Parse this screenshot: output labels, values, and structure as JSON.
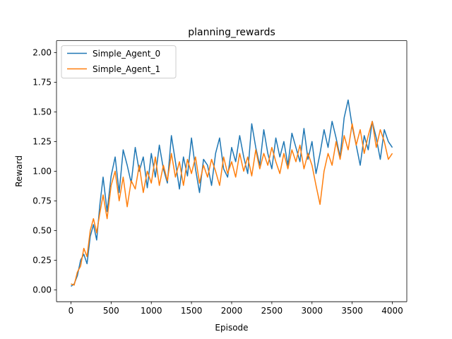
{
  "chart_data": {
    "type": "line",
    "title": "planning_rewards",
    "xlabel": "Episode",
    "ylabel": "Reward",
    "xlim": [
      -180,
      4180
    ],
    "ylim": [
      -0.1,
      2.1
    ],
    "x_ticks": [
      0,
      500,
      1000,
      1500,
      2000,
      2500,
      3000,
      3500,
      4000
    ],
    "x_tick_labels": [
      "0",
      "500",
      "1000",
      "1500",
      "2000",
      "2500",
      "3000",
      "3500",
      "4000"
    ],
    "y_ticks": [
      0.0,
      0.25,
      0.5,
      0.75,
      1.0,
      1.25,
      1.5,
      1.75,
      2.0
    ],
    "y_tick_labels": [
      "0.00",
      "0.25",
      "0.50",
      "0.75",
      "1.00",
      "1.25",
      "1.50",
      "1.75",
      "2.00"
    ],
    "grid": false,
    "legend_position": "top-left",
    "series": [
      {
        "name": "Simple_Agent_0",
        "color": "#1f77b4",
        "points": [
          [
            0,
            0.03
          ],
          [
            40,
            0.05
          ],
          [
            80,
            0.12
          ],
          [
            120,
            0.25
          ],
          [
            160,
            0.3
          ],
          [
            200,
            0.22
          ],
          [
            240,
            0.45
          ],
          [
            280,
            0.55
          ],
          [
            320,
            0.42
          ],
          [
            360,
            0.72
          ],
          [
            400,
            0.95
          ],
          [
            450,
            0.66
          ],
          [
            500,
            0.96
          ],
          [
            550,
            1.12
          ],
          [
            600,
            0.82
          ],
          [
            650,
            1.18
          ],
          [
            700,
            1.05
          ],
          [
            750,
            0.9
          ],
          [
            800,
            1.2
          ],
          [
            850,
            1.0
          ],
          [
            900,
            1.12
          ],
          [
            950,
            0.86
          ],
          [
            1000,
            1.15
          ],
          [
            1050,
            0.95
          ],
          [
            1100,
            1.22
          ],
          [
            1150,
            1.02
          ],
          [
            1200,
            0.9
          ],
          [
            1250,
            1.3
          ],
          [
            1300,
            1.08
          ],
          [
            1350,
            0.85
          ],
          [
            1400,
            1.12
          ],
          [
            1450,
            0.96
          ],
          [
            1500,
            1.28
          ],
          [
            1550,
            1.02
          ],
          [
            1600,
            0.82
          ],
          [
            1650,
            1.1
          ],
          [
            1700,
            1.05
          ],
          [
            1750,
            0.88
          ],
          [
            1800,
            1.15
          ],
          [
            1850,
            1.28
          ],
          [
            1900,
            1.02
          ],
          [
            1950,
            0.95
          ],
          [
            2000,
            1.2
          ],
          [
            2050,
            1.08
          ],
          [
            2100,
            1.3
          ],
          [
            2150,
            1.12
          ],
          [
            2200,
            0.98
          ],
          [
            2250,
            1.4
          ],
          [
            2300,
            1.2
          ],
          [
            2350,
            1.05
          ],
          [
            2400,
            1.35
          ],
          [
            2450,
            1.15
          ],
          [
            2500,
            1.02
          ],
          [
            2550,
            1.28
          ],
          [
            2600,
            1.12
          ],
          [
            2650,
            1.25
          ],
          [
            2700,
            1.05
          ],
          [
            2750,
            1.32
          ],
          [
            2800,
            1.2
          ],
          [
            2850,
            1.08
          ],
          [
            2900,
            1.36
          ],
          [
            2950,
            1.1
          ],
          [
            3000,
            1.25
          ],
          [
            3050,
            0.98
          ],
          [
            3100,
            1.15
          ],
          [
            3150,
            1.35
          ],
          [
            3200,
            1.2
          ],
          [
            3250,
            1.42
          ],
          [
            3300,
            1.28
          ],
          [
            3350,
            1.12
          ],
          [
            3400,
            1.45
          ],
          [
            3450,
            1.6
          ],
          [
            3500,
            1.38
          ],
          [
            3550,
            1.22
          ],
          [
            3600,
            1.05
          ],
          [
            3650,
            1.3
          ],
          [
            3700,
            1.18
          ],
          [
            3750,
            1.42
          ],
          [
            3800,
            1.28
          ],
          [
            3850,
            1.1
          ],
          [
            3900,
            1.35
          ],
          [
            3950,
            1.25
          ],
          [
            4000,
            1.2
          ]
        ]
      },
      {
        "name": "Simple_Agent_1",
        "color": "#ff7f0e",
        "points": [
          [
            0,
            0.05
          ],
          [
            40,
            0.04
          ],
          [
            80,
            0.15
          ],
          [
            120,
            0.2
          ],
          [
            160,
            0.35
          ],
          [
            200,
            0.28
          ],
          [
            240,
            0.5
          ],
          [
            280,
            0.6
          ],
          [
            320,
            0.48
          ],
          [
            360,
            0.65
          ],
          [
            400,
            0.8
          ],
          [
            450,
            0.6
          ],
          [
            500,
            0.88
          ],
          [
            550,
            1.0
          ],
          [
            600,
            0.75
          ],
          [
            650,
            0.95
          ],
          [
            700,
            0.7
          ],
          [
            750,
            0.92
          ],
          [
            800,
            0.85
          ],
          [
            850,
            1.05
          ],
          [
            900,
            0.82
          ],
          [
            950,
            1.0
          ],
          [
            1000,
            0.9
          ],
          [
            1050,
            1.12
          ],
          [
            1100,
            0.88
          ],
          [
            1150,
            1.05
          ],
          [
            1200,
            0.92
          ],
          [
            1250,
            1.15
          ],
          [
            1300,
            0.95
          ],
          [
            1350,
            1.08
          ],
          [
            1400,
            0.88
          ],
          [
            1450,
            1.1
          ],
          [
            1500,
            0.98
          ],
          [
            1550,
            1.12
          ],
          [
            1600,
            0.9
          ],
          [
            1650,
            1.05
          ],
          [
            1700,
            0.95
          ],
          [
            1750,
            1.1
          ],
          [
            1800,
            1.0
          ],
          [
            1850,
            0.88
          ],
          [
            1900,
            1.12
          ],
          [
            1950,
            0.98
          ],
          [
            2000,
            1.08
          ],
          [
            2050,
            0.95
          ],
          [
            2100,
            1.15
          ],
          [
            2150,
            1.0
          ],
          [
            2200,
            1.12
          ],
          [
            2250,
            0.96
          ],
          [
            2300,
            1.18
          ],
          [
            2350,
            1.02
          ],
          [
            2400,
            1.15
          ],
          [
            2450,
            1.05
          ],
          [
            2500,
            1.2
          ],
          [
            2550,
            1.08
          ],
          [
            2600,
            0.98
          ],
          [
            2650,
            1.15
          ],
          [
            2700,
            1.02
          ],
          [
            2750,
            1.18
          ],
          [
            2800,
            1.08
          ],
          [
            2850,
            1.22
          ],
          [
            2900,
            1.02
          ],
          [
            2950,
            1.15
          ],
          [
            3000,
            1.05
          ],
          [
            3050,
            0.88
          ],
          [
            3100,
            0.72
          ],
          [
            3150,
            1.0
          ],
          [
            3200,
            1.15
          ],
          [
            3250,
            1.05
          ],
          [
            3300,
            1.25
          ],
          [
            3350,
            1.1
          ],
          [
            3400,
            1.3
          ],
          [
            3450,
            1.18
          ],
          [
            3500,
            1.4
          ],
          [
            3550,
            1.22
          ],
          [
            3600,
            1.35
          ],
          [
            3650,
            1.15
          ],
          [
            3700,
            1.3
          ],
          [
            3750,
            1.42
          ],
          [
            3800,
            1.2
          ],
          [
            3850,
            1.35
          ],
          [
            3900,
            1.25
          ],
          [
            3950,
            1.1
          ],
          [
            4000,
            1.15
          ]
        ]
      }
    ]
  }
}
